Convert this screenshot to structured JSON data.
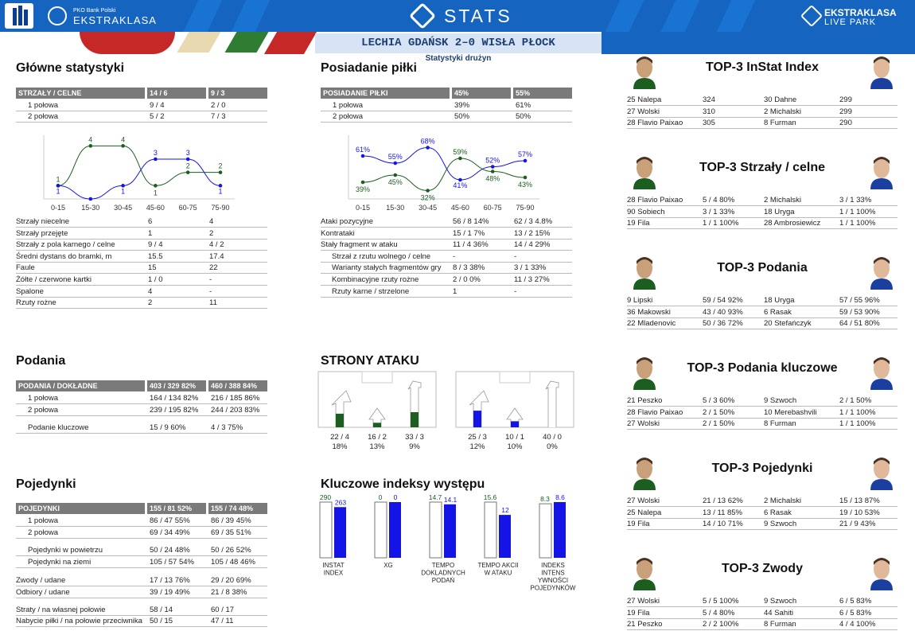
{
  "header": {
    "sponsor": "PKO Bank Polski",
    "league": "EKSTRAKLASA",
    "stats_title": "STATS",
    "right_logo_line1": "EKSTRAKLASA",
    "right_logo_line2": "LIVE PARK",
    "match": "LECHIA GDAŃSK 2–0 WISŁA PŁOCK",
    "subtitle": "Statystyki drużyn"
  },
  "colors": {
    "home": "#1b5e20",
    "away": "#1414e6",
    "header": "#1565c0",
    "table_header": "#7a7a7a"
  },
  "shots": {
    "title": "Główne statystyki",
    "header": [
      "STRZAŁY / CELNE",
      "14 / 6",
      "9 / 3"
    ],
    "rows": [
      [
        "1 połowa",
        "9 / 4",
        "2 / 0"
      ],
      [
        "2 połowa",
        "5 / 2",
        "7 / 3"
      ]
    ],
    "stats": [
      [
        "Strzały niecelne",
        "6",
        "4"
      ],
      [
        "Strzały przejęte",
        "1",
        "2"
      ],
      [
        "Strzały z pola karnego / celne",
        "9 / 4",
        "4 / 2"
      ],
      [
        "Średni dystans do bramki, m",
        "15.5",
        "17.4"
      ],
      [
        "Faule",
        "15",
        "22"
      ],
      [
        "Żółte / czerwone kartki",
        "1 / 0",
        "-"
      ],
      [
        "Spalone",
        "4",
        "-"
      ],
      [
        "Rzuty rożne",
        "2",
        "11"
      ]
    ]
  },
  "shots_chart": {
    "type": "line",
    "x": [
      "0-15",
      "15-30",
      "30-45",
      "45-60",
      "60-75",
      "75-90"
    ],
    "series": [
      {
        "values": [
          1,
          4,
          4,
          1,
          2,
          2
        ],
        "color": "#1b5e20"
      },
      {
        "values": [
          1,
          0,
          1,
          3,
          3,
          1
        ],
        "color": "#1414e6"
      }
    ],
    "labels_home": [
      "1",
      "4",
      "4",
      "1",
      "2",
      "2"
    ],
    "labels_away": [
      "1",
      "",
      "1",
      "3",
      "3",
      "1"
    ]
  },
  "possession": {
    "title": "Posiadanie piłki",
    "header": [
      "POSIADANIE PIŁKI",
      "45%",
      "55%"
    ],
    "rows": [
      [
        "1 połowa",
        "39%",
        "61%"
      ],
      [
        "2 połowa",
        "50%",
        "50%"
      ]
    ],
    "stats": [
      [
        "Ataki pozycyjne",
        "56 / 8 14%",
        "62 / 3 4.8%"
      ],
      [
        "Kontrataki",
        "15 / 1 7%",
        "13 / 2 15%"
      ],
      [
        "Stały fragment w ataku",
        "11 / 4 36%",
        "14 / 4 29%"
      ],
      [
        "Strzał z rzutu wolnego / celne",
        "-",
        "-"
      ],
      [
        "Warianty stałych fragmentów gry",
        "8 / 3    38%",
        "3 / 1    33%"
      ],
      [
        "Kombinacyjne rzuty rożne",
        "2 / 0    0%",
        "11 / 3 27%"
      ],
      [
        "Rzuty karne /  strzelone",
        "1",
        "-"
      ]
    ]
  },
  "possession_chart": {
    "type": "line",
    "x": [
      "0-15",
      "15-30",
      "30-45",
      "45-60",
      "60-75",
      "75-90"
    ],
    "series": [
      {
        "values": [
          39,
          45,
          32,
          59,
          48,
          43
        ],
        "color": "#1b5e20"
      },
      {
        "values": [
          61,
          55,
          68,
          41,
          52,
          57
        ],
        "color": "#1414e6"
      }
    ],
    "labels_home": [
      "39%",
      "45%",
      "32%",
      "59%",
      "48%",
      "43%"
    ],
    "labels_away": [
      "61%",
      "55%",
      "68%",
      "41%",
      "52%",
      "57%"
    ]
  },
  "passes": {
    "title": "Podania",
    "header": [
      "PODANIA / DOKŁADNE",
      "403 / 329 82%",
      "460 / 388 84%"
    ],
    "rows": [
      [
        "1 połowa",
        "164 / 134 82%",
        "216 / 185 86%"
      ],
      [
        "2 połowa",
        "239 / 195 82%",
        "244 / 203 83%"
      ],
      [
        "Podanie kluczowe",
        "15 / 9       60%",
        "4 / 3         75%"
      ]
    ]
  },
  "attack_sides": {
    "title": "STRONY ATAKU",
    "home": {
      "values": [
        "22 / 4",
        "16 / 2",
        "33 / 3"
      ],
      "pcts": [
        "18%",
        "13%",
        "9%"
      ],
      "bars": [
        0.45,
        0.15,
        0.5
      ],
      "color": "#1b5e20"
    },
    "away": {
      "values": [
        "25 / 3",
        "10 / 1",
        "40 / 0"
      ],
      "pcts": [
        "12%",
        "10%",
        "0%"
      ],
      "bars": [
        0.55,
        0.2,
        0
      ],
      "color": "#1414e6"
    }
  },
  "duels": {
    "title": "Pojedynki",
    "header": [
      "POJEDYNKI",
      "155 / 81 52%",
      "155 / 74 48%"
    ],
    "rows": [
      [
        "1 połowa",
        "86 / 47   55%",
        "86 / 39   45%"
      ],
      [
        "2 połowa",
        "69 / 34   49%",
        "69 / 35   51%"
      ],
      [
        "Pojedynki w powietrzu",
        "50 / 24   48%",
        "50 / 26   52%"
      ],
      [
        "Pojedynki na ziemi",
        "105 / 57 54%",
        "105 / 48 46%"
      ],
      [
        "Zwody / udane",
        "17 / 13   76%",
        "29 / 20   69%"
      ],
      [
        "Odbiory / udane",
        "39 / 19   49%",
        "21 / 8     38%"
      ],
      [
        "Straty / na własnej połowie",
        "58 / 14",
        "60 / 17"
      ],
      [
        "Nabycie piłki / na połowie przeciwnika",
        "50 / 15",
        "47 / 11"
      ]
    ]
  },
  "indices": {
    "title": "Kluczowe indeksy występu",
    "items": [
      {
        "label": "INSTAT INDEX",
        "home": "290",
        "away": "263",
        "home_frac": 1.0,
        "away_frac": 0.91
      },
      {
        "label": "XG",
        "home": "0",
        "away": "0",
        "home_frac": 1.0,
        "away_frac": 1.0
      },
      {
        "label": "TEMPO DOKLADNYCH PODAŃ",
        "home": "14.7",
        "away": "14.1",
        "home_frac": 1.0,
        "away_frac": 0.96
      },
      {
        "label": "TEMPO AKCII W ATAKU",
        "home": "15.6",
        "away": "12",
        "home_frac": 1.0,
        "away_frac": 0.77
      },
      {
        "label": "INDEKS INTENS YWNOŚCI POJEDYNKÓW",
        "home": "8.3",
        "away": "8.6",
        "home_frac": 0.97,
        "away_frac": 1.0
      }
    ]
  },
  "tops": [
    {
      "title": "TOP-3 InStat Index",
      "rows": [
        [
          "25 Nalepa",
          "324",
          "30 Dahne",
          "299"
        ],
        [
          "27 Wolski",
          "310",
          "2   Michalski",
          "299"
        ],
        [
          "28 Flavio Paixao",
          "305",
          "8   Furman",
          "290"
        ]
      ]
    },
    {
      "title": "TOP-3 Strzały / celne",
      "rows": [
        [
          "28 Flavio Paixao",
          "5 / 4  80%",
          "2   Michalski",
          "3 / 1  33%"
        ],
        [
          "90 Sobiech",
          "3 / 1  33%",
          "18 Uryga",
          "1 / 1  100%"
        ],
        [
          "19 Fila",
          "1 / 1  100%",
          "28 Ambrosiewicz",
          "1 / 1  100%"
        ]
      ]
    },
    {
      "title": "TOP-3 Podania",
      "rows": [
        [
          "9   Lipski",
          "59 / 54 92%",
          "18 Uryga",
          "57 / 55 96%"
        ],
        [
          "36 Makowski",
          "43 / 40 93%",
          "6   Rasak",
          "59 / 53 90%"
        ],
        [
          "22 Mladenovic",
          "50 / 36 72%",
          "20 Stefańczyk",
          "64 / 51 80%"
        ]
      ]
    },
    {
      "title": "TOP-3 Podania kluczowe",
      "rows": [
        [
          "21 Peszko",
          "5 / 3  60%",
          "9   Szwoch",
          "2 / 1  50%"
        ],
        [
          "28 Flavio Paixao",
          "2 / 1  50%",
          "10 Merebashvili",
          "1 / 1  100%"
        ],
        [
          "27 Wolski",
          "2 / 1  50%",
          "8   Furman",
          "1 / 1  100%"
        ]
      ]
    },
    {
      "title": "TOP-3 Pojedynki",
      "rows": [
        [
          "27 Wolski",
          "21 / 13 62%",
          "2   Michalski",
          "15 / 13 87%"
        ],
        [
          "25 Nalepa",
          "13 / 11 85%",
          "6   Rasak",
          "19 / 10 53%"
        ],
        [
          "19 Fila",
          "14 / 10 71%",
          "9   Szwoch",
          "21 / 9    43%"
        ]
      ]
    },
    {
      "title": "TOP-3 Zwody",
      "rows": [
        [
          "27 Wolski",
          "5 / 5  100%",
          "9   Szwoch",
          "6 / 5  83%"
        ],
        [
          "19 Fila",
          "5 / 4  80%",
          "44 Sahiti",
          "6 / 5  83%"
        ],
        [
          "21 Peszko",
          "2 / 2  100%",
          "8   Furman",
          "4 / 4  100%"
        ]
      ]
    }
  ]
}
